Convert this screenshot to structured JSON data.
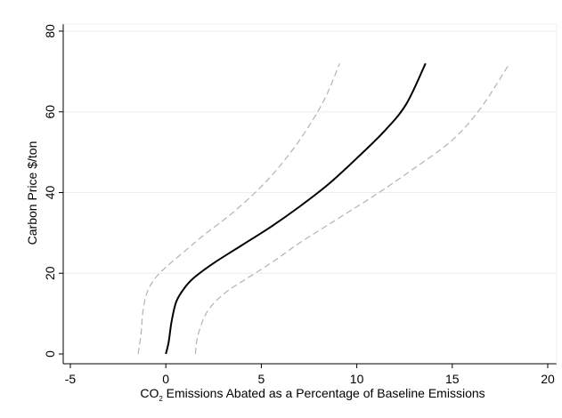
{
  "chart_data": {
    "type": "line",
    "xlabel": {
      "prefix": "CO",
      "sub": "2",
      "suffix": " Emissions Abated as a Percentage of Baseline Emissions"
    },
    "ylabel": "Carbon Price $/ton",
    "xlim": [
      -5,
      20
    ],
    "ylim": [
      0,
      80
    ],
    "x_ticks": [
      {
        "value": -5,
        "label": "-5"
      },
      {
        "value": 0,
        "label": "0"
      },
      {
        "value": 5,
        "label": "5"
      },
      {
        "value": 10,
        "label": "10"
      },
      {
        "value": 15,
        "label": "15"
      },
      {
        "value": 20,
        "label": "20"
      }
    ],
    "y_ticks": [
      {
        "value": 0,
        "label": "0"
      },
      {
        "value": 20,
        "label": "20"
      },
      {
        "value": 40,
        "label": "40"
      },
      {
        "value": 60,
        "label": "60"
      },
      {
        "value": 80,
        "label": "80"
      }
    ],
    "grid": "horizontal",
    "legend": "none",
    "series": [
      {
        "style": "solid",
        "color": "#000000",
        "points": [
          [
            0.0,
            0
          ],
          [
            0.15,
            3
          ],
          [
            0.3,
            8
          ],
          [
            0.55,
            13
          ],
          [
            1.0,
            16.5
          ],
          [
            1.5,
            19
          ],
          [
            2.5,
            22.5
          ],
          [
            4.0,
            27
          ],
          [
            5.5,
            31.5
          ],
          [
            7.0,
            36.5
          ],
          [
            8.5,
            42
          ],
          [
            10.0,
            48.5
          ],
          [
            11.5,
            55.5
          ],
          [
            12.6,
            62
          ],
          [
            13.6,
            72
          ]
        ]
      },
      {
        "style": "dashed",
        "color": "#b3b3b3",
        "points": [
          [
            -1.45,
            0
          ],
          [
            -1.3,
            5
          ],
          [
            -1.2,
            10.5
          ],
          [
            -1.0,
            15
          ],
          [
            -0.6,
            18.5
          ],
          [
            0.0,
            21.5
          ],
          [
            1.0,
            25.5
          ],
          [
            2.0,
            29.5
          ],
          [
            3.5,
            35
          ],
          [
            5.0,
            41.5
          ],
          [
            6.3,
            48.5
          ],
          [
            7.5,
            56.5
          ],
          [
            8.4,
            64
          ],
          [
            9.1,
            72
          ]
        ]
      },
      {
        "style": "dashed",
        "color": "#b3b3b3",
        "points": [
          [
            1.55,
            0
          ],
          [
            1.65,
            4
          ],
          [
            2.0,
            9
          ],
          [
            2.5,
            12.5
          ],
          [
            3.2,
            15.5
          ],
          [
            4.0,
            18
          ],
          [
            5.5,
            22.5
          ],
          [
            7.0,
            27.5
          ],
          [
            9.0,
            33.5
          ],
          [
            11.0,
            39.5
          ],
          [
            13.0,
            46
          ],
          [
            15.0,
            53
          ],
          [
            16.5,
            61
          ],
          [
            18.0,
            72
          ]
        ]
      }
    ]
  }
}
